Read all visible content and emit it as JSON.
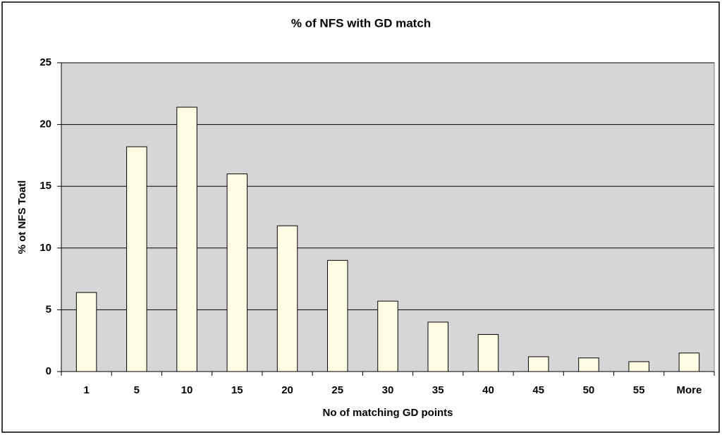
{
  "chart_data": {
    "type": "bar",
    "title": "% of NFS with GD match",
    "x_label": "No of matching GD points",
    "y_label": "% ot NFS Toatl",
    "categories": [
      "1",
      "5",
      "10",
      "15",
      "20",
      "25",
      "30",
      "35",
      "40",
      "45",
      "50",
      "55",
      "More"
    ],
    "values": [
      6.4,
      18.2,
      21.4,
      16.0,
      11.8,
      9.0,
      5.7,
      4.0,
      3.0,
      1.2,
      1.1,
      0.8,
      1.5
    ],
    "color": "#ffffe5",
    "ylim": [
      0,
      25
    ],
    "yticks": [
      0,
      5,
      10,
      15,
      20,
      25
    ],
    "grid": true
  }
}
